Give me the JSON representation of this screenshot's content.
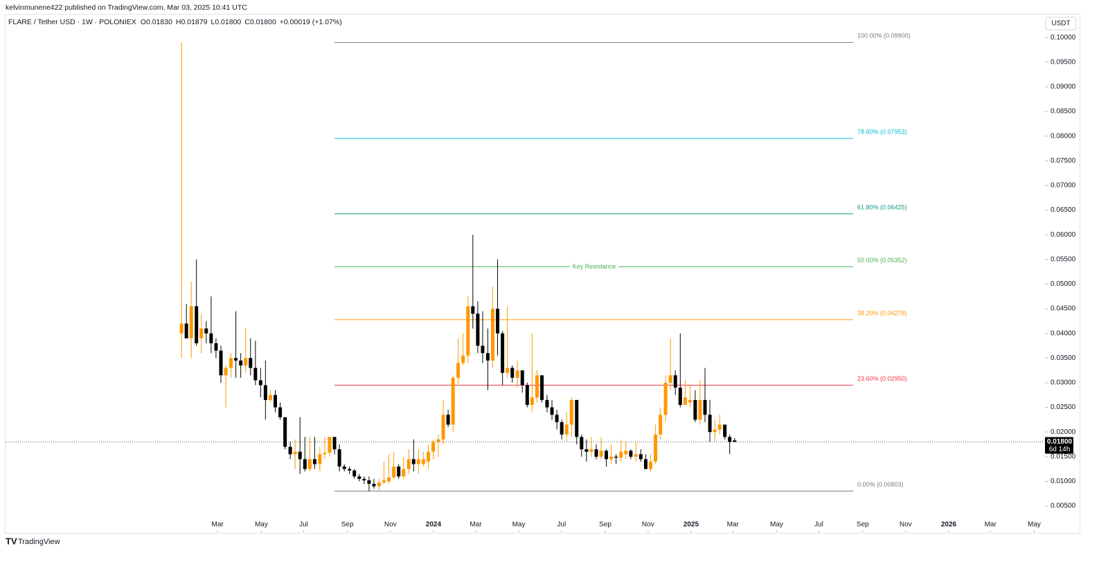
{
  "header": {
    "published": "kelvinmunene422 published on TradingView.com, Mar 03, 2025 10:41 UTC",
    "brand": "TradingView"
  },
  "chart_data": {
    "type": "candlestick",
    "symbol": "FLARE / Tether USD · 1W · POLONIEX",
    "ohlc_legend": [
      "O0.01830",
      "H0.01879",
      "L0.01800",
      "C0.01800",
      "+0.00019 (+1.07%)"
    ],
    "currency": "USDT",
    "up_color": "#ff9800",
    "down_color": "#000000",
    "x": [
      2023.022,
      2023.041,
      2023.06,
      2023.08,
      2023.099,
      2023.118,
      2023.137,
      2023.156,
      2023.175,
      2023.194,
      2023.214,
      2023.233,
      2023.252,
      2023.271,
      2023.29,
      2023.309,
      2023.329,
      2023.348,
      2023.367,
      2023.386,
      2023.405,
      2023.424,
      2023.444,
      2023.463,
      2023.482,
      2023.501,
      2023.52,
      2023.539,
      2023.559,
      2023.578,
      2023.597,
      2023.616,
      2023.635,
      2023.654,
      2023.674,
      2023.693,
      2023.712,
      2023.731,
      2023.75,
      2023.769,
      2023.789,
      2023.808,
      2023.827,
      2023.846,
      2023.865,
      2023.884,
      2023.904,
      2023.923,
      2023.942,
      2023.961,
      2023.98,
      2023.999,
      2024.019,
      2024.038,
      2024.057,
      2024.076,
      2024.096,
      2024.115,
      2024.134,
      2024.153,
      2024.172,
      2024.191,
      2024.211,
      2024.23,
      2024.249,
      2024.268,
      2024.287,
      2024.306,
      2024.326,
      2024.345,
      2024.364,
      2024.383,
      2024.402,
      2024.421,
      2024.441,
      2024.46,
      2024.479,
      2024.498,
      2024.517,
      2024.536,
      2024.556,
      2024.575,
      2024.594,
      2024.613,
      2024.632,
      2024.651,
      2024.671,
      2024.69,
      2024.709,
      2024.728,
      2024.747,
      2024.766,
      2024.786,
      2024.805,
      2024.824,
      2024.843,
      2024.862,
      2024.881,
      2024.901,
      2024.92,
      2024.939,
      2024.958,
      2024.977,
      2024.996,
      2025.016,
      2025.035,
      2025.054,
      2025.073,
      2025.092,
      2025.111,
      2025.131,
      2025.15,
      2025.169
    ],
    "open": [
      0.04,
      0.042,
      0.039,
      0.0455,
      0.039,
      0.041,
      0.04,
      0.038,
      0.0365,
      0.0315,
      0.033,
      0.035,
      0.0345,
      0.0335,
      0.035,
      0.033,
      0.0305,
      0.0295,
      0.0265,
      0.0275,
      0.025,
      0.023,
      0.017,
      0.0155,
      0.016,
      0.0145,
      0.0125,
      0.0145,
      0.0135,
      0.0155,
      0.0158,
      0.019,
      0.0165,
      0.013,
      0.0125,
      0.0122,
      0.011,
      0.0105,
      0.0102,
      0.0095,
      0.009,
      0.0098,
      0.01,
      0.0108,
      0.013,
      0.011,
      0.0125,
      0.0145,
      0.0135,
      0.0135,
      0.014,
      0.016,
      0.018,
      0.0185,
      0.0235,
      0.0215,
      0.031,
      0.034,
      0.0355,
      0.0455,
      0.044,
      0.0375,
      0.036,
      0.0345,
      0.045,
      0.04,
      0.032,
      0.033,
      0.031,
      0.0325,
      0.0295,
      0.0255,
      0.027,
      0.0315,
      0.0265,
      0.025,
      0.0235,
      0.022,
      0.0195,
      0.0215,
      0.0265,
      0.019,
      0.0165,
      0.016,
      0.0165,
      0.015,
      0.0162,
      0.0145,
      0.015,
      0.0148,
      0.0155,
      0.0162,
      0.015,
      0.0155,
      0.0145,
      0.0125,
      0.014,
      0.0195,
      0.0235,
      0.03,
      0.0315,
      0.029,
      0.0255,
      0.026,
      0.0265,
      0.0225,
      0.0265,
      0.0235,
      0.02,
      0.0205,
      0.0215,
      0.019,
      0.0183
    ],
    "high": [
      0.099,
      0.046,
      0.0505,
      0.055,
      0.044,
      0.0425,
      0.0475,
      0.039,
      0.0375,
      0.0335,
      0.036,
      0.0445,
      0.036,
      0.041,
      0.039,
      0.0385,
      0.033,
      0.0345,
      0.0285,
      0.0285,
      0.026,
      0.023,
      0.018,
      0.0185,
      0.023,
      0.019,
      0.019,
      0.019,
      0.017,
      0.019,
      0.019,
      0.019,
      0.0175,
      0.0135,
      0.013,
      0.0125,
      0.0115,
      0.011,
      0.011,
      0.0105,
      0.0105,
      0.014,
      0.0155,
      0.016,
      0.0135,
      0.015,
      0.0165,
      0.0185,
      0.0165,
      0.016,
      0.0175,
      0.0185,
      0.0195,
      0.0265,
      0.0245,
      0.0315,
      0.039,
      0.04,
      0.0475,
      0.06,
      0.0465,
      0.0445,
      0.041,
      0.0495,
      0.055,
      0.0405,
      0.0455,
      0.0335,
      0.0345,
      0.0325,
      0.03,
      0.04,
      0.0325,
      0.0315,
      0.0275,
      0.0265,
      0.0245,
      0.0225,
      0.024,
      0.027,
      0.0265,
      0.0195,
      0.0185,
      0.019,
      0.0175,
      0.019,
      0.0165,
      0.0175,
      0.0155,
      0.0185,
      0.018,
      0.0165,
      0.018,
      0.0165,
      0.0155,
      0.0155,
      0.0215,
      0.025,
      0.0315,
      0.039,
      0.0325,
      0.04,
      0.0305,
      0.0295,
      0.0285,
      0.0305,
      0.033,
      0.0265,
      0.0225,
      0.0235,
      0.0215,
      0.0195,
      0.01879
    ],
    "low": [
      0.035,
      0.039,
      0.035,
      0.0375,
      0.036,
      0.038,
      0.036,
      0.035,
      0.03,
      0.025,
      0.031,
      0.031,
      0.031,
      0.032,
      0.0315,
      0.0295,
      0.027,
      0.0225,
      0.026,
      0.024,
      0.0225,
      0.0165,
      0.0145,
      0.0125,
      0.0115,
      0.012,
      0.012,
      0.0125,
      0.012,
      0.0145,
      0.015,
      0.0155,
      0.012,
      0.012,
      0.0115,
      0.0105,
      0.01,
      0.0095,
      0.008,
      0.0085,
      0.0082,
      0.0095,
      0.0095,
      0.0105,
      0.0105,
      0.0105,
      0.0115,
      0.012,
      0.0115,
      0.013,
      0.0125,
      0.0145,
      0.015,
      0.0175,
      0.021,
      0.02,
      0.0295,
      0.0335,
      0.034,
      0.041,
      0.036,
      0.034,
      0.0285,
      0.033,
      0.0355,
      0.0295,
      0.031,
      0.03,
      0.029,
      0.028,
      0.025,
      0.024,
      0.026,
      0.026,
      0.024,
      0.0225,
      0.0205,
      0.0185,
      0.018,
      0.019,
      0.0175,
      0.015,
      0.014,
      0.015,
      0.0145,
      0.0145,
      0.013,
      0.0135,
      0.0135,
      0.014,
      0.0145,
      0.0145,
      0.014,
      0.014,
      0.0125,
      0.012,
      0.0135,
      0.0185,
      0.022,
      0.0285,
      0.0275,
      0.025,
      0.0255,
      0.025,
      0.022,
      0.0215,
      0.022,
      0.018,
      0.018,
      0.0195,
      0.0185,
      0.0155,
      0.018
    ],
    "close": [
      0.042,
      0.039,
      0.0455,
      0.038,
      0.041,
      0.04,
      0.038,
      0.0365,
      0.0315,
      0.033,
      0.035,
      0.0345,
      0.0335,
      0.035,
      0.033,
      0.0305,
      0.0295,
      0.0265,
      0.0275,
      0.025,
      0.023,
      0.017,
      0.0155,
      0.016,
      0.0145,
      0.0125,
      0.0145,
      0.0135,
      0.0155,
      0.0158,
      0.019,
      0.0165,
      0.013,
      0.0125,
      0.0122,
      0.011,
      0.0105,
      0.0102,
      0.0095,
      0.009,
      0.0098,
      0.0102,
      0.0108,
      0.013,
      0.011,
      0.0125,
      0.0145,
      0.0135,
      0.0145,
      0.0145,
      0.016,
      0.018,
      0.0185,
      0.0235,
      0.0215,
      0.031,
      0.034,
      0.0355,
      0.0455,
      0.044,
      0.0375,
      0.036,
      0.0345,
      0.045,
      0.04,
      0.032,
      0.033,
      0.031,
      0.0325,
      0.0295,
      0.0255,
      0.027,
      0.0315,
      0.0265,
      0.025,
      0.0235,
      0.022,
      0.0195,
      0.0215,
      0.0265,
      0.019,
      0.0165,
      0.016,
      0.0165,
      0.015,
      0.0162,
      0.0145,
      0.015,
      0.0148,
      0.016,
      0.0162,
      0.015,
      0.0155,
      0.0145,
      0.0125,
      0.014,
      0.0195,
      0.0235,
      0.03,
      0.0315,
      0.029,
      0.0255,
      0.027,
      0.0265,
      0.0225,
      0.0265,
      0.0235,
      0.02,
      0.0205,
      0.0215,
      0.019,
      0.018,
      0.018
    ],
    "xlim": [
      2022.339,
      2026.363
    ],
    "xticks": [
      {
        "value": 2023.162,
        "label": "Mar"
      },
      {
        "value": 2023.332,
        "label": "May"
      },
      {
        "value": 2023.496,
        "label": "Jul"
      },
      {
        "value": 2023.666,
        "label": "Sep"
      },
      {
        "value": 2023.833,
        "label": "Nov"
      },
      2024,
      {
        "value": 2024.164,
        "label": "Mar"
      },
      {
        "value": 2024.331,
        "label": "May"
      },
      {
        "value": 2024.497,
        "label": "Jul"
      },
      {
        "value": 2024.667,
        "label": "Sep"
      },
      {
        "value": 2024.833,
        "label": "Nov"
      },
      2025,
      {
        "value": 2025.162,
        "label": "Mar"
      },
      {
        "value": 2025.332,
        "label": "May"
      },
      {
        "value": 2025.496,
        "label": "Jul"
      },
      {
        "value": 2025.666,
        "label": "Sep"
      },
      {
        "value": 2025.833,
        "label": "Nov"
      },
      2026,
      {
        "value": 2026.162,
        "label": "Mar"
      },
      {
        "value": 2026.332,
        "label": "May"
      }
    ],
    "ylim": [
      0.0001,
      0.1048
    ],
    "yticks": [
      {
        "value": 0.1,
        "label": "0.10000"
      },
      {
        "value": 0.095,
        "label": "0.09500"
      },
      {
        "value": 0.09,
        "label": "0.09000"
      },
      {
        "value": 0.085,
        "label": "0.08500"
      },
      {
        "value": 0.08,
        "label": "0.08000"
      },
      {
        "value": 0.075,
        "label": "0.07500"
      },
      {
        "value": 0.07,
        "label": "0.07000"
      },
      {
        "value": 0.065,
        "label": "0.06500"
      },
      {
        "value": 0.06,
        "label": "0.06000"
      },
      {
        "value": 0.055,
        "label": "0.05500"
      },
      {
        "value": 0.05,
        "label": "0.05000"
      },
      {
        "value": 0.045,
        "label": "0.04500"
      },
      {
        "value": 0.04,
        "label": "0.04000"
      },
      {
        "value": 0.035,
        "label": "0.03500"
      },
      {
        "value": 0.03,
        "label": "0.03000"
      },
      {
        "value": 0.025,
        "label": "0.02500"
      },
      {
        "value": 0.02,
        "label": "0.02000"
      },
      {
        "value": 0.015,
        "label": "0.01500"
      },
      {
        "value": 0.01,
        "label": "0.01000"
      },
      {
        "value": 0.005,
        "label": "0.00500"
      }
    ],
    "grid": false,
    "fib_levels": [
      {
        "label": "100.00% (0.09900)",
        "value": 0.099,
        "color": "#787b86"
      },
      {
        "label": "78.60% (0.07953)",
        "value": 0.07953,
        "color": "#00bcd4"
      },
      {
        "label": "61.80% (0.06425)",
        "value": 0.06425,
        "color": "#089981"
      },
      {
        "label": "50.00% (0.05352)",
        "value": 0.05352,
        "color": "#4caf50",
        "annotation": "Key Resistance"
      },
      {
        "label": "38.20% (0.04278)",
        "value": 0.04278,
        "color": "#ff9800"
      },
      {
        "label": "23.60% (0.02950)",
        "value": 0.0295,
        "color": "#f23645"
      },
      {
        "label": "0.00% (0.00803)",
        "value": 0.00803,
        "color": "#787b86"
      }
    ],
    "last_price": {
      "value": 0.018,
      "label": "0.01800",
      "countdown": "6d 14h"
    }
  }
}
